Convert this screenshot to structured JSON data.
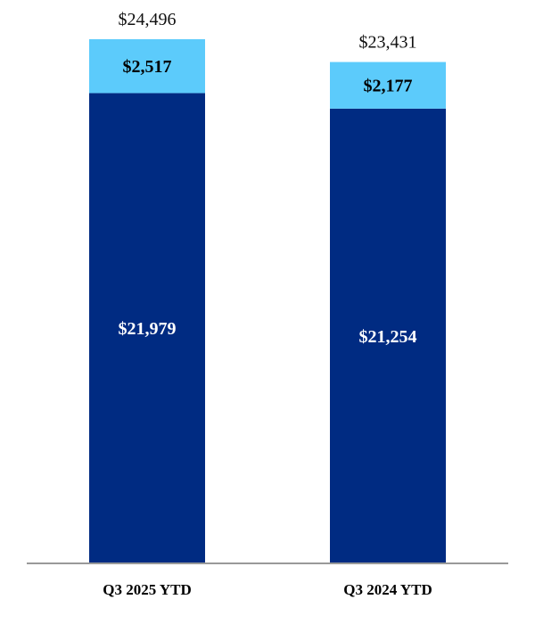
{
  "chart_data": {
    "type": "bar",
    "stacked": true,
    "categories": [
      "Q3 2025 YTD",
      "Q3 2024 YTD"
    ],
    "series": [
      {
        "values": [
          21979,
          21254
        ],
        "labels": [
          "$21,979",
          "$21,254"
        ],
        "color": "#002b82"
      },
      {
        "values": [
          2517,
          2177
        ],
        "labels": [
          "$2,517",
          "$2,177"
        ],
        "color": "#5ccbfb"
      }
    ],
    "totals": [
      24496,
      23431
    ],
    "total_labels": [
      "$24,496",
      "$23,431"
    ],
    "ylim": [
      0,
      30000
    ],
    "grid": false,
    "legend": "none",
    "axis_color": "#999999"
  }
}
